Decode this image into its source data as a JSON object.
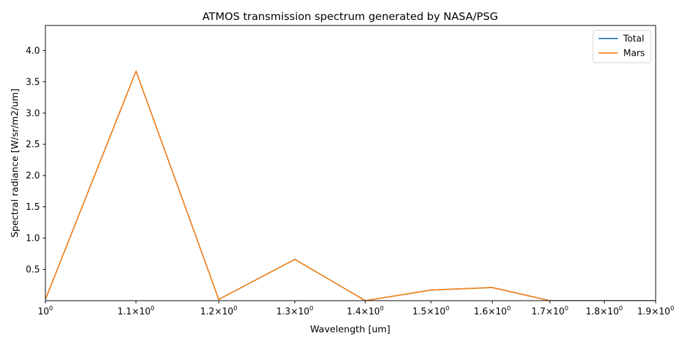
{
  "chart_data": {
    "type": "line",
    "title": "ATMOS transmission spectrum generated by NASA/PSG",
    "xlabel": "Wavelength [um]",
    "ylabel": "Spectral radiance [W/sr/m2/um]",
    "xscale": "log",
    "xlim": [
      1.0,
      1.9
    ],
    "ylim": [
      0.0,
      4.4
    ],
    "grid": false,
    "legend_position": "top-right",
    "x_ticks": [
      {
        "value": 1.0,
        "mantissa": "",
        "exp": "0"
      },
      {
        "value": 1.1,
        "mantissa": "1.1",
        "exp": "0"
      },
      {
        "value": 1.2,
        "mantissa": "1.2",
        "exp": "0"
      },
      {
        "value": 1.3,
        "mantissa": "1.3",
        "exp": "0"
      },
      {
        "value": 1.4,
        "mantissa": "1.4",
        "exp": "0"
      },
      {
        "value": 1.5,
        "mantissa": "1.5",
        "exp": "0"
      },
      {
        "value": 1.6,
        "mantissa": "1.6",
        "exp": "0"
      },
      {
        "value": 1.7,
        "mantissa": "1.7",
        "exp": "0"
      },
      {
        "value": 1.8,
        "mantissa": "1.8",
        "exp": "0"
      },
      {
        "value": 1.9,
        "mantissa": "1.9",
        "exp": "0"
      }
    ],
    "y_ticks": [
      {
        "value": 0.5,
        "label": "0.5"
      },
      {
        "value": 1.0,
        "label": "1.0"
      },
      {
        "value": 1.5,
        "label": "1.5"
      },
      {
        "value": 2.0,
        "label": "2.0"
      },
      {
        "value": 2.5,
        "label": "2.5"
      },
      {
        "value": 3.0,
        "label": "3.0"
      },
      {
        "value": 3.5,
        "label": "3.5"
      },
      {
        "value": 4.0,
        "label": "4.0"
      }
    ],
    "x": [
      1.0,
      1.1,
      1.2,
      1.3,
      1.4,
      1.5,
      1.6,
      1.7,
      1.8,
      1.9
    ],
    "series": [
      {
        "name": "Total",
        "color": "#1f77b4",
        "values": [
          0.02,
          3.67,
          0.02,
          0.66,
          0.0,
          0.17,
          0.21,
          0.0,
          0.0,
          0.0
        ]
      },
      {
        "name": "Mars",
        "color": "#ff7f0e",
        "values": [
          0.02,
          3.67,
          0.02,
          0.66,
          0.0,
          0.17,
          0.21,
          0.0,
          0.0,
          0.0
        ]
      }
    ]
  }
}
